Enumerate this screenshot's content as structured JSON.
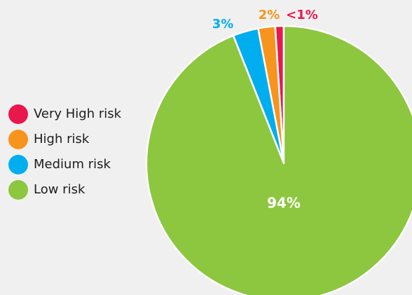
{
  "chart_data": {
    "type": "pie",
    "categories": [
      "Very High risk",
      "High risk",
      "Medium risk",
      "Low risk"
    ],
    "values": [
      1,
      2,
      3,
      94
    ],
    "value_labels": [
      "<1%",
      "2%",
      "3%",
      "94%"
    ],
    "colors": [
      "#e8184c",
      "#f7941d",
      "#00aeef",
      "#8dc63f"
    ],
    "label_colors": [
      "#e8184c",
      "#f7941d",
      "#00aeef",
      "#ffffff"
    ],
    "start": "12 o'clock",
    "direction": "counter-clockwise",
    "legend_position": "left"
  }
}
